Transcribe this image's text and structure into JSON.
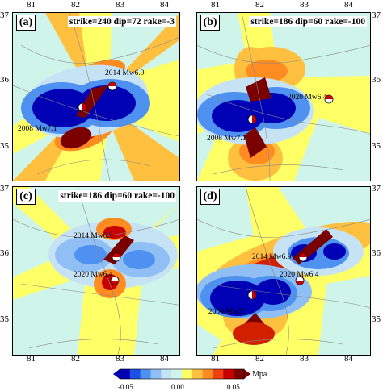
{
  "panels": [
    {
      "letter": "(a)",
      "params": "strike=240 dip=72 rake=-3",
      "labels": {
        "a": "2014 Mw6.9",
        "b": "2008 Mw7.1"
      }
    },
    {
      "letter": "(b)",
      "params": "strike=186 dip=60 rake=-100",
      "labels": {
        "a": "2020 Mw6.4",
        "b": "2008 Mw7.1"
      }
    },
    {
      "letter": "(c)",
      "params": "strike=186 dip=60 rake=-100",
      "labels": {
        "a": "2014 Mw6.9",
        "b": "2020 Mw6.4"
      }
    },
    {
      "letter": "(d)",
      "params": "",
      "labels": {
        "a": "2014 Mw6.9",
        "b": "2020 Mw6.4",
        "c": "2008 Mw7.1"
      }
    }
  ],
  "axes": {
    "x_ticks": [
      "81",
      "82",
      "83",
      "84"
    ],
    "y_ticks": [
      "37",
      "36",
      "35"
    ]
  },
  "colorbar": {
    "ticks": [
      "-0.05",
      "0.00",
      "0.05"
    ],
    "unit": "Mpa",
    "colors": [
      "#0000b4",
      "#1e50e6",
      "#4f91f0",
      "#8fbff5",
      "#c6e2f5",
      "#cff5ea",
      "#ffff66",
      "#ffc040",
      "#ff8c20",
      "#f04010",
      "#c80000",
      "#7a0000"
    ]
  }
}
